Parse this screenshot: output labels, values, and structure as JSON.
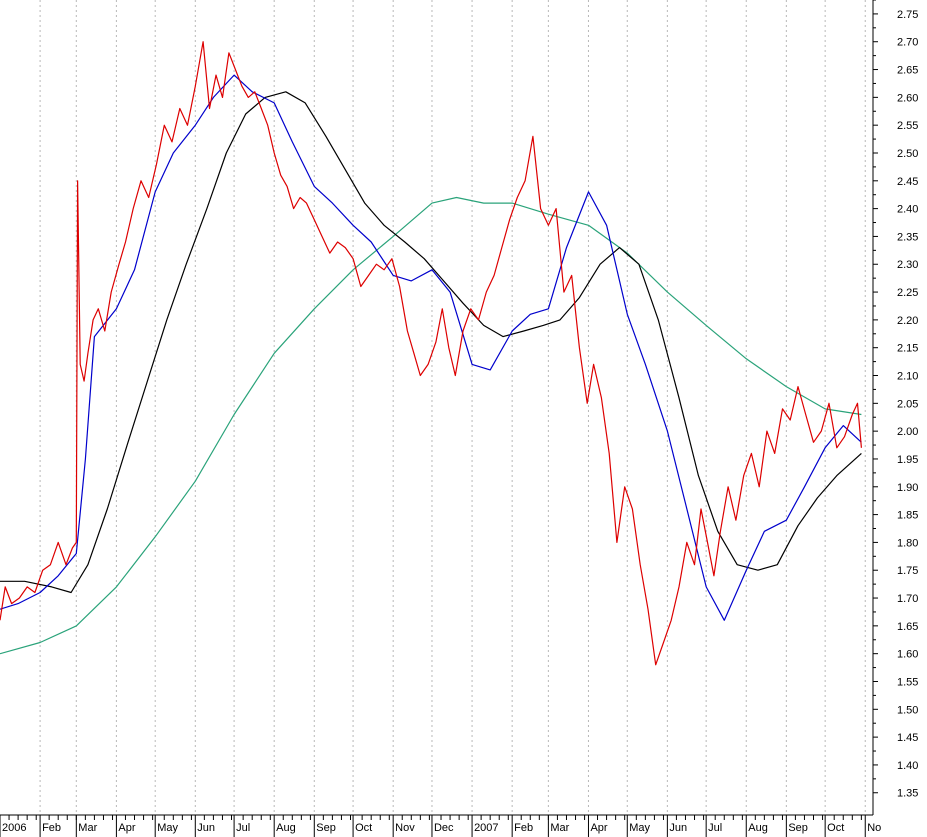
{
  "chart_data": {
    "type": "line",
    "title": "",
    "xlabel": "",
    "ylabel": "",
    "x_tick_labels": [
      "2006",
      "Feb",
      "Mar",
      "Apr",
      "May",
      "Jun",
      "Jul",
      "Aug",
      "Sep",
      "Oct",
      "Nov",
      "Dec",
      "2007",
      "Feb",
      "Mar",
      "Apr",
      "May",
      "Jun",
      "Jul",
      "Aug",
      "Sep",
      "Oct",
      "No"
    ],
    "y_tick_labels": [
      "2.75",
      "2.70",
      "2.65",
      "2.60",
      "2.55",
      "2.50",
      "2.45",
      "2.40",
      "2.35",
      "2.30",
      "2.25",
      "2.20",
      "2.15",
      "2.10",
      "2.05",
      "2.00",
      "1.95",
      "1.90",
      "1.85",
      "1.80",
      "1.75",
      "1.70",
      "1.65",
      "1.60",
      "1.55",
      "1.50",
      "1.45",
      "1.40",
      "1.35"
    ],
    "ylim": [
      1.31,
      2.775
    ],
    "xlim": [
      "2006-01-01",
      "2007-11-07"
    ],
    "grid": "vertical dotted at month starts",
    "legend": "none",
    "y_axis_side": "right",
    "series": [
      {
        "color": "#dd0000",
        "style": "price",
        "x": [
          "2006-01-01",
          "2006-01-05",
          "2006-01-10",
          "2006-01-16",
          "2006-01-22",
          "2006-01-28",
          "2006-02-03",
          "2006-02-09",
          "2006-02-15",
          "2006-02-21",
          "2006-02-26",
          "2006-03-01",
          "2006-03-02",
          "2006-03-04",
          "2006-03-07",
          "2006-03-10",
          "2006-03-14",
          "2006-03-18",
          "2006-03-23",
          "2006-03-28",
          "2006-04-03",
          "2006-04-08",
          "2006-04-14",
          "2006-04-20",
          "2006-04-26",
          "2006-05-02",
          "2006-05-08",
          "2006-05-14",
          "2006-05-20",
          "2006-05-26",
          "2006-06-01",
          "2006-06-07",
          "2006-06-12",
          "2006-06-17",
          "2006-06-22",
          "2006-06-27",
          "2006-07-02",
          "2006-07-07",
          "2006-07-12",
          "2006-07-17",
          "2006-07-22",
          "2006-07-27",
          "2006-08-01",
          "2006-08-06",
          "2006-08-11",
          "2006-08-16",
          "2006-08-21",
          "2006-08-26",
          "2006-09-01",
          "2006-09-07",
          "2006-09-13",
          "2006-09-19",
          "2006-09-25",
          "2006-10-01",
          "2006-10-07",
          "2006-10-13",
          "2006-10-19",
          "2006-10-25",
          "2006-10-31",
          "2006-11-06",
          "2006-11-12",
          "2006-11-17",
          "2006-11-22",
          "2006-11-28",
          "2006-12-04",
          "2006-12-09",
          "2006-12-14",
          "2006-12-19",
          "2006-12-25",
          "2006-12-31",
          "2007-01-06",
          "2007-01-12",
          "2007-01-18",
          "2007-01-24",
          "2007-01-30",
          "2007-02-05",
          "2007-02-11",
          "2007-02-17",
          "2007-02-23",
          "2007-03-01",
          "2007-03-07",
          "2007-03-13",
          "2007-03-19",
          "2007-03-25",
          "2007-03-31",
          "2007-04-05",
          "2007-04-11",
          "2007-04-17",
          "2007-04-23",
          "2007-04-29",
          "2007-05-05",
          "2007-05-11",
          "2007-05-17",
          "2007-05-23",
          "2007-05-29",
          "2007-06-04",
          "2007-06-10",
          "2007-06-16",
          "2007-06-22",
          "2007-06-27",
          "2007-07-02",
          "2007-07-07",
          "2007-07-12",
          "2007-07-18",
          "2007-07-24",
          "2007-07-30",
          "2007-08-05",
          "2007-08-11",
          "2007-08-17",
          "2007-08-23",
          "2007-08-29",
          "2007-09-04",
          "2007-09-10",
          "2007-09-16",
          "2007-09-22",
          "2007-09-28",
          "2007-10-04",
          "2007-10-10",
          "2007-10-16",
          "2007-10-22",
          "2007-10-26",
          "2007-10-29"
        ],
        "y": [
          1.66,
          1.72,
          1.69,
          1.7,
          1.72,
          1.71,
          1.75,
          1.76,
          1.8,
          1.76,
          1.79,
          1.8,
          2.45,
          2.12,
          2.09,
          2.14,
          2.2,
          2.22,
          2.18,
          2.25,
          2.3,
          2.34,
          2.4,
          2.45,
          2.42,
          2.48,
          2.55,
          2.52,
          2.58,
          2.55,
          2.62,
          2.7,
          2.58,
          2.64,
          2.6,
          2.68,
          2.65,
          2.62,
          2.6,
          2.61,
          2.58,
          2.55,
          2.5,
          2.46,
          2.44,
          2.4,
          2.42,
          2.41,
          2.38,
          2.35,
          2.32,
          2.34,
          2.33,
          2.31,
          2.26,
          2.28,
          2.3,
          2.29,
          2.31,
          2.26,
          2.18,
          2.14,
          2.1,
          2.12,
          2.16,
          2.22,
          2.15,
          2.1,
          2.18,
          2.22,
          2.2,
          2.25,
          2.28,
          2.33,
          2.38,
          2.42,
          2.45,
          2.53,
          2.4,
          2.37,
          2.4,
          2.25,
          2.28,
          2.15,
          2.05,
          2.12,
          2.06,
          1.96,
          1.8,
          1.9,
          1.86,
          1.76,
          1.68,
          1.58,
          1.62,
          1.66,
          1.72,
          1.8,
          1.76,
          1.86,
          1.8,
          1.74,
          1.82,
          1.9,
          1.84,
          1.92,
          1.96,
          1.9,
          2.0,
          1.96,
          2.04,
          2.02,
          2.08,
          2.03,
          1.98,
          2.0,
          2.05,
          1.97,
          1.99,
          2.03,
          2.05,
          1.97
        ],
        "y_estimated_note": "",
        "extra_spikes": []
      },
      {
        "color": "#0000cc",
        "style": "short moving average",
        "x": [
          "2006-01-01",
          "2006-01-15",
          "2006-02-01",
          "2006-02-15",
          "2006-03-01",
          "2006-03-08",
          "2006-03-15",
          "2006-04-01",
          "2006-04-15",
          "2006-05-01",
          "2006-05-15",
          "2006-06-01",
          "2006-06-15",
          "2006-07-01",
          "2006-07-15",
          "2006-08-01",
          "2006-08-15",
          "2006-09-01",
          "2006-09-15",
          "2006-10-01",
          "2006-10-15",
          "2006-11-01",
          "2006-11-15",
          "2006-12-01",
          "2006-12-15",
          "2007-01-01",
          "2007-01-15",
          "2007-02-01",
          "2007-02-15",
          "2007-03-01",
          "2007-03-15",
          "2007-04-01",
          "2007-04-15",
          "2007-05-01",
          "2007-05-15",
          "2007-06-01",
          "2007-06-15",
          "2007-07-01",
          "2007-07-15",
          "2007-08-01",
          "2007-08-15",
          "2007-09-01",
          "2007-09-15",
          "2007-10-01",
          "2007-10-15",
          "2007-10-29"
        ],
        "y": [
          1.68,
          1.69,
          1.71,
          1.74,
          1.78,
          1.95,
          2.17,
          2.22,
          2.29,
          2.43,
          2.5,
          2.55,
          2.6,
          2.64,
          2.61,
          2.59,
          2.52,
          2.44,
          2.41,
          2.37,
          2.34,
          2.28,
          2.27,
          2.29,
          2.25,
          2.12,
          2.11,
          2.18,
          2.21,
          2.22,
          2.33,
          2.43,
          2.37,
          2.21,
          2.12,
          2.0,
          1.87,
          1.72,
          1.66,
          1.75,
          1.82,
          1.84,
          1.9,
          1.97,
          2.01,
          1.98
        ]
      },
      {
        "color": "#000000",
        "style": "medium moving average",
        "x": [
          "2006-01-01",
          "2006-01-20",
          "2006-02-10",
          "2006-02-25",
          "2006-03-10",
          "2006-03-25",
          "2006-04-10",
          "2006-04-25",
          "2006-05-10",
          "2006-05-25",
          "2006-06-10",
          "2006-06-25",
          "2006-07-10",
          "2006-07-25",
          "2006-08-10",
          "2006-08-25",
          "2006-09-10",
          "2006-09-25",
          "2006-10-10",
          "2006-10-25",
          "2006-11-10",
          "2006-11-25",
          "2006-12-10",
          "2006-12-25",
          "2007-01-10",
          "2007-01-25",
          "2007-02-10",
          "2007-02-25",
          "2007-03-10",
          "2007-03-25",
          "2007-04-10",
          "2007-04-25",
          "2007-05-10",
          "2007-05-25",
          "2007-06-10",
          "2007-06-25",
          "2007-07-10",
          "2007-07-25",
          "2007-08-10",
          "2007-08-25",
          "2007-09-10",
          "2007-09-25",
          "2007-10-10",
          "2007-10-29"
        ],
        "y": [
          1.73,
          1.73,
          1.72,
          1.71,
          1.76,
          1.86,
          1.98,
          2.09,
          2.2,
          2.3,
          2.4,
          2.5,
          2.57,
          2.6,
          2.61,
          2.59,
          2.53,
          2.47,
          2.41,
          2.37,
          2.34,
          2.31,
          2.27,
          2.23,
          2.19,
          2.17,
          2.18,
          2.19,
          2.2,
          2.24,
          2.3,
          2.33,
          2.3,
          2.2,
          2.06,
          1.92,
          1.82,
          1.76,
          1.75,
          1.76,
          1.83,
          1.88,
          1.92,
          1.96
        ]
      },
      {
        "color": "#2aa37a",
        "style": "long moving average",
        "x": [
          "2006-01-01",
          "2006-02-01",
          "2006-03-01",
          "2006-04-01",
          "2006-05-01",
          "2006-06-01",
          "2006-07-01",
          "2006-08-01",
          "2006-09-01",
          "2006-10-01",
          "2006-11-01",
          "2006-12-01",
          "2006-12-20",
          "2007-01-10",
          "2007-02-01",
          "2007-03-01",
          "2007-04-01",
          "2007-05-01",
          "2007-06-01",
          "2007-07-01",
          "2007-08-01",
          "2007-09-01",
          "2007-10-01",
          "2007-10-29"
        ],
        "y": [
          1.6,
          1.62,
          1.65,
          1.72,
          1.81,
          1.91,
          2.03,
          2.14,
          2.22,
          2.29,
          2.35,
          2.41,
          2.42,
          2.41,
          2.41,
          2.39,
          2.37,
          2.32,
          2.25,
          2.19,
          2.13,
          2.08,
          2.04,
          2.03
        ]
      }
    ]
  }
}
